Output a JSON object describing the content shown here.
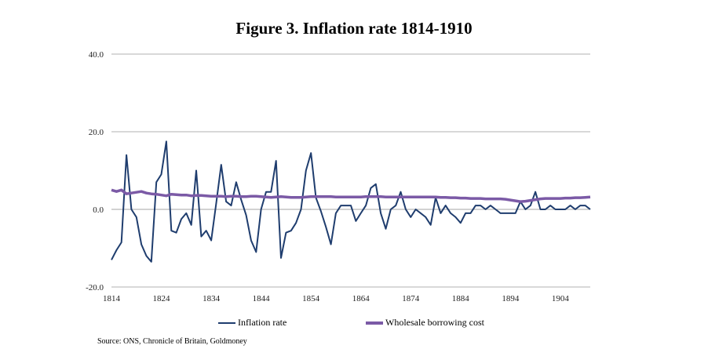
{
  "chart_data": {
    "type": "line",
    "title": "Figure 3. Inflation rate 1814-1910",
    "xlabel": "",
    "ylabel": "",
    "ylim": [
      -20,
      40
    ],
    "xlim": [
      1814,
      1910
    ],
    "y_ticks": [
      "40.0",
      "20.0",
      "0.0",
      "-20.0"
    ],
    "x_ticks": [
      "1814",
      "1824",
      "1834",
      "1844",
      "1854",
      "1864",
      "1874",
      "1884",
      "1894",
      "1904"
    ],
    "grid": "horizontal",
    "legend": "bottom",
    "source": "Source: ONS, Chronicle of Britain, Goldmoney",
    "series": [
      {
        "name": "Inflation rate",
        "color": "#1f3d6e",
        "x": [
          1814,
          1815,
          1816,
          1817,
          1818,
          1819,
          1820,
          1821,
          1822,
          1823,
          1824,
          1825,
          1826,
          1827,
          1828,
          1829,
          1830,
          1831,
          1832,
          1833,
          1834,
          1835,
          1836,
          1837,
          1838,
          1839,
          1840,
          1841,
          1842,
          1843,
          1844,
          1845,
          1846,
          1847,
          1848,
          1849,
          1850,
          1851,
          1852,
          1853,
          1854,
          1855,
          1856,
          1857,
          1858,
          1859,
          1860,
          1861,
          1862,
          1863,
          1864,
          1865,
          1866,
          1867,
          1868,
          1869,
          1870,
          1871,
          1872,
          1873,
          1874,
          1875,
          1876,
          1877,
          1878,
          1879,
          1880,
          1881,
          1882,
          1883,
          1884,
          1885,
          1886,
          1887,
          1888,
          1889,
          1890,
          1891,
          1892,
          1893,
          1894,
          1895,
          1896,
          1897,
          1898,
          1899,
          1900,
          1901,
          1902,
          1903,
          1904,
          1905,
          1906,
          1907,
          1908,
          1909,
          1910
        ],
        "values": [
          -13,
          -10.5,
          -8.5,
          14,
          0,
          -2,
          -9,
          -12,
          -13.5,
          7,
          9,
          17.5,
          -5.5,
          -6,
          -2.5,
          -1,
          -4,
          10,
          -7,
          -5.5,
          -8,
          1.5,
          11.5,
          2,
          1,
          7,
          2.5,
          -1.5,
          -8,
          -11,
          0,
          4.5,
          4.5,
          12.5,
          -12.5,
          -6,
          -5.5,
          -3.5,
          0,
          10,
          14.5,
          3,
          -0.5,
          -4.5,
          -9,
          -1,
          1,
          1,
          1,
          -3,
          -1,
          1,
          5.5,
          6.5,
          -1,
          -5,
          0,
          1,
          4.5,
          0,
          -2,
          0,
          -1,
          -2,
          -4,
          3,
          -1,
          1,
          -1,
          -2,
          -3.5,
          -1,
          -1,
          1,
          1,
          0,
          1,
          0,
          -1,
          -1,
          -1,
          -1,
          2,
          0,
          1,
          4.5,
          0,
          0,
          1,
          0,
          0,
          0,
          1,
          0,
          1,
          1,
          0
        ]
      },
      {
        "name": "Wholesale borrowing cost",
        "color": "#7b5aa6",
        "x": [
          1814,
          1815,
          1816,
          1817,
          1818,
          1819,
          1820,
          1821,
          1822,
          1823,
          1824,
          1825,
          1826,
          1827,
          1828,
          1829,
          1830,
          1831,
          1832,
          1833,
          1834,
          1835,
          1836,
          1837,
          1838,
          1839,
          1840,
          1841,
          1842,
          1843,
          1844,
          1845,
          1846,
          1847,
          1848,
          1849,
          1850,
          1851,
          1852,
          1853,
          1854,
          1855,
          1856,
          1857,
          1858,
          1859,
          1860,
          1861,
          1862,
          1863,
          1864,
          1865,
          1866,
          1867,
          1868,
          1869,
          1870,
          1871,
          1872,
          1873,
          1874,
          1875,
          1876,
          1877,
          1878,
          1879,
          1880,
          1881,
          1882,
          1883,
          1884,
          1885,
          1886,
          1887,
          1888,
          1889,
          1890,
          1891,
          1892,
          1893,
          1894,
          1895,
          1896,
          1897,
          1898,
          1899,
          1900,
          1901,
          1902,
          1903,
          1904,
          1905,
          1906,
          1907,
          1908,
          1909,
          1910
        ],
        "values": [
          5,
          4.6,
          5,
          4,
          4.2,
          4.4,
          4.6,
          4.2,
          4,
          3.9,
          3.7,
          3.5,
          3.9,
          3.8,
          3.7,
          3.7,
          3.5,
          3.6,
          3.6,
          3.5,
          3.4,
          3.4,
          3.4,
          3.3,
          3.4,
          3.4,
          3.3,
          3.3,
          3.4,
          3.4,
          3.3,
          3.2,
          3.1,
          3.2,
          3.3,
          3.2,
          3.1,
          3.1,
          3.1,
          3.2,
          3.3,
          3.3,
          3.3,
          3.3,
          3.3,
          3.2,
          3.2,
          3.2,
          3.2,
          3.2,
          3.2,
          3.3,
          3.3,
          3.3,
          3.3,
          3.2,
          3.2,
          3.2,
          3.2,
          3.2,
          3.2,
          3.2,
          3.2,
          3.2,
          3.2,
          3.2,
          3.1,
          3.1,
          3.0,
          3.0,
          2.9,
          2.9,
          2.8,
          2.8,
          2.8,
          2.7,
          2.7,
          2.7,
          2.7,
          2.6,
          2.4,
          2.2,
          2.0,
          2.1,
          2.3,
          2.5,
          2.7,
          2.8,
          2.8,
          2.8,
          2.8,
          2.9,
          2.9,
          3.0,
          3.0,
          3.1,
          3.2
        ]
      }
    ]
  }
}
